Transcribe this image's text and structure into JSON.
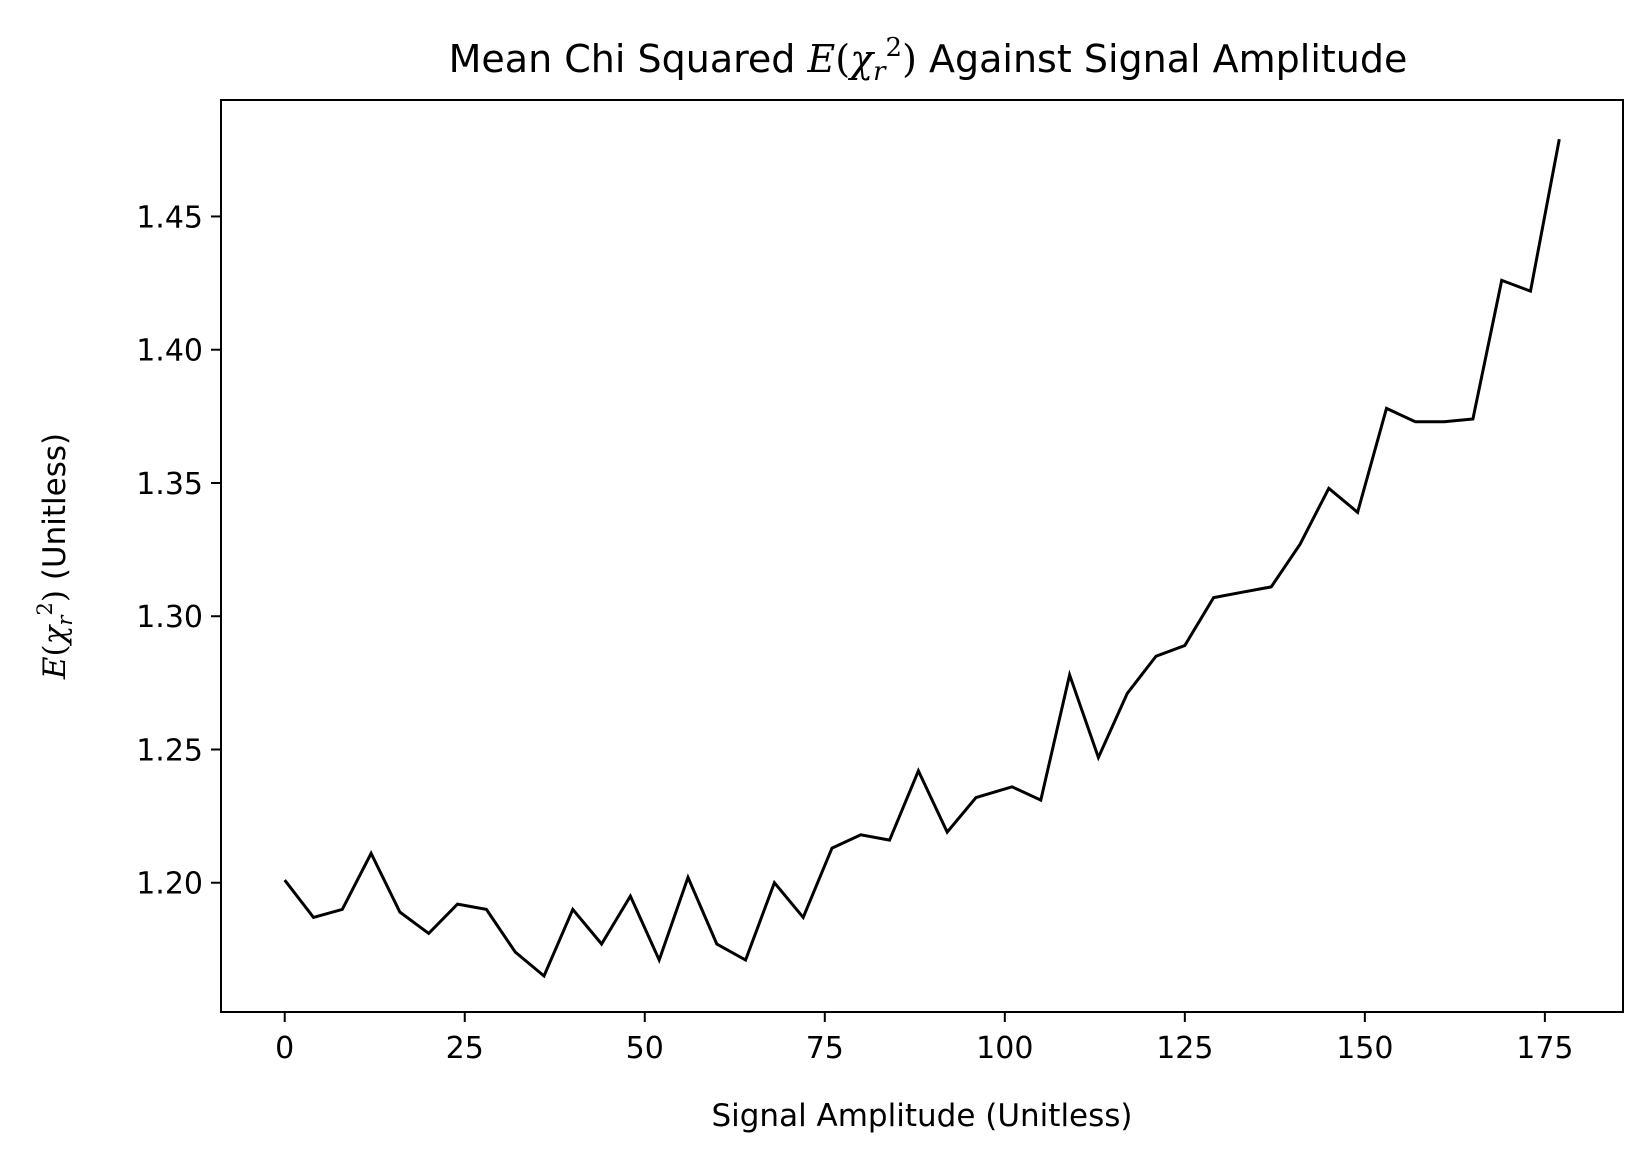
{
  "chart_data": {
    "type": "line",
    "title": {
      "prefix": "Mean Chi Squared ",
      "math_E": "E",
      "math_open": "(",
      "math_chi": "χ",
      "math_sub": "r",
      "math_sup": "2",
      "math_close": ")",
      "suffix": " Against Signal Amplitude"
    },
    "xlabel": "Signal Amplitude (Unitless)",
    "ylabel": {
      "math_E": "E",
      "math_open": "(",
      "math_chi": "χ",
      "math_sub": "r",
      "math_sup": "2",
      "math_close": ")",
      "suffix": " (Unitless)"
    },
    "xlim": [
      -8.85,
      185.85
    ],
    "ylim": [
      1.1515,
      1.4937
    ],
    "xticks": [
      0,
      25,
      50,
      75,
      100,
      125,
      150,
      175
    ],
    "xtick_labels": [
      "0",
      "25",
      "50",
      "75",
      "100",
      "125",
      "150",
      "175"
    ],
    "yticks": [
      1.2,
      1.25,
      1.3,
      1.35,
      1.4,
      1.45
    ],
    "ytick_labels": [
      "1.20",
      "1.25",
      "1.30",
      "1.35",
      "1.40",
      "1.45"
    ],
    "grid": false,
    "legend": "none",
    "line_color": "#000000",
    "series": [
      {
        "x": [
          0,
          4,
          8,
          12,
          16,
          20,
          24,
          28,
          32,
          36,
          40,
          44,
          48,
          52,
          56,
          60,
          64,
          68,
          72,
          76,
          80,
          84,
          88,
          92,
          96,
          101,
          105,
          109,
          113,
          117,
          121,
          125,
          129,
          133,
          137,
          141,
          145,
          149,
          153,
          157,
          161,
          165,
          169,
          173,
          177
        ],
        "y": [
          1.201,
          1.187,
          1.19,
          1.211,
          1.189,
          1.181,
          1.192,
          1.19,
          1.174,
          1.165,
          1.19,
          1.177,
          1.195,
          1.171,
          1.202,
          1.177,
          1.171,
          1.2,
          1.187,
          1.213,
          1.218,
          1.216,
          1.242,
          1.219,
          1.232,
          1.236,
          1.231,
          1.278,
          1.247,
          1.271,
          1.285,
          1.289,
          1.307,
          1.309,
          1.311,
          1.327,
          1.348,
          1.339,
          1.378,
          1.373,
          1.373,
          1.374,
          1.426,
          1.422,
          1.479
        ]
      }
    ]
  }
}
